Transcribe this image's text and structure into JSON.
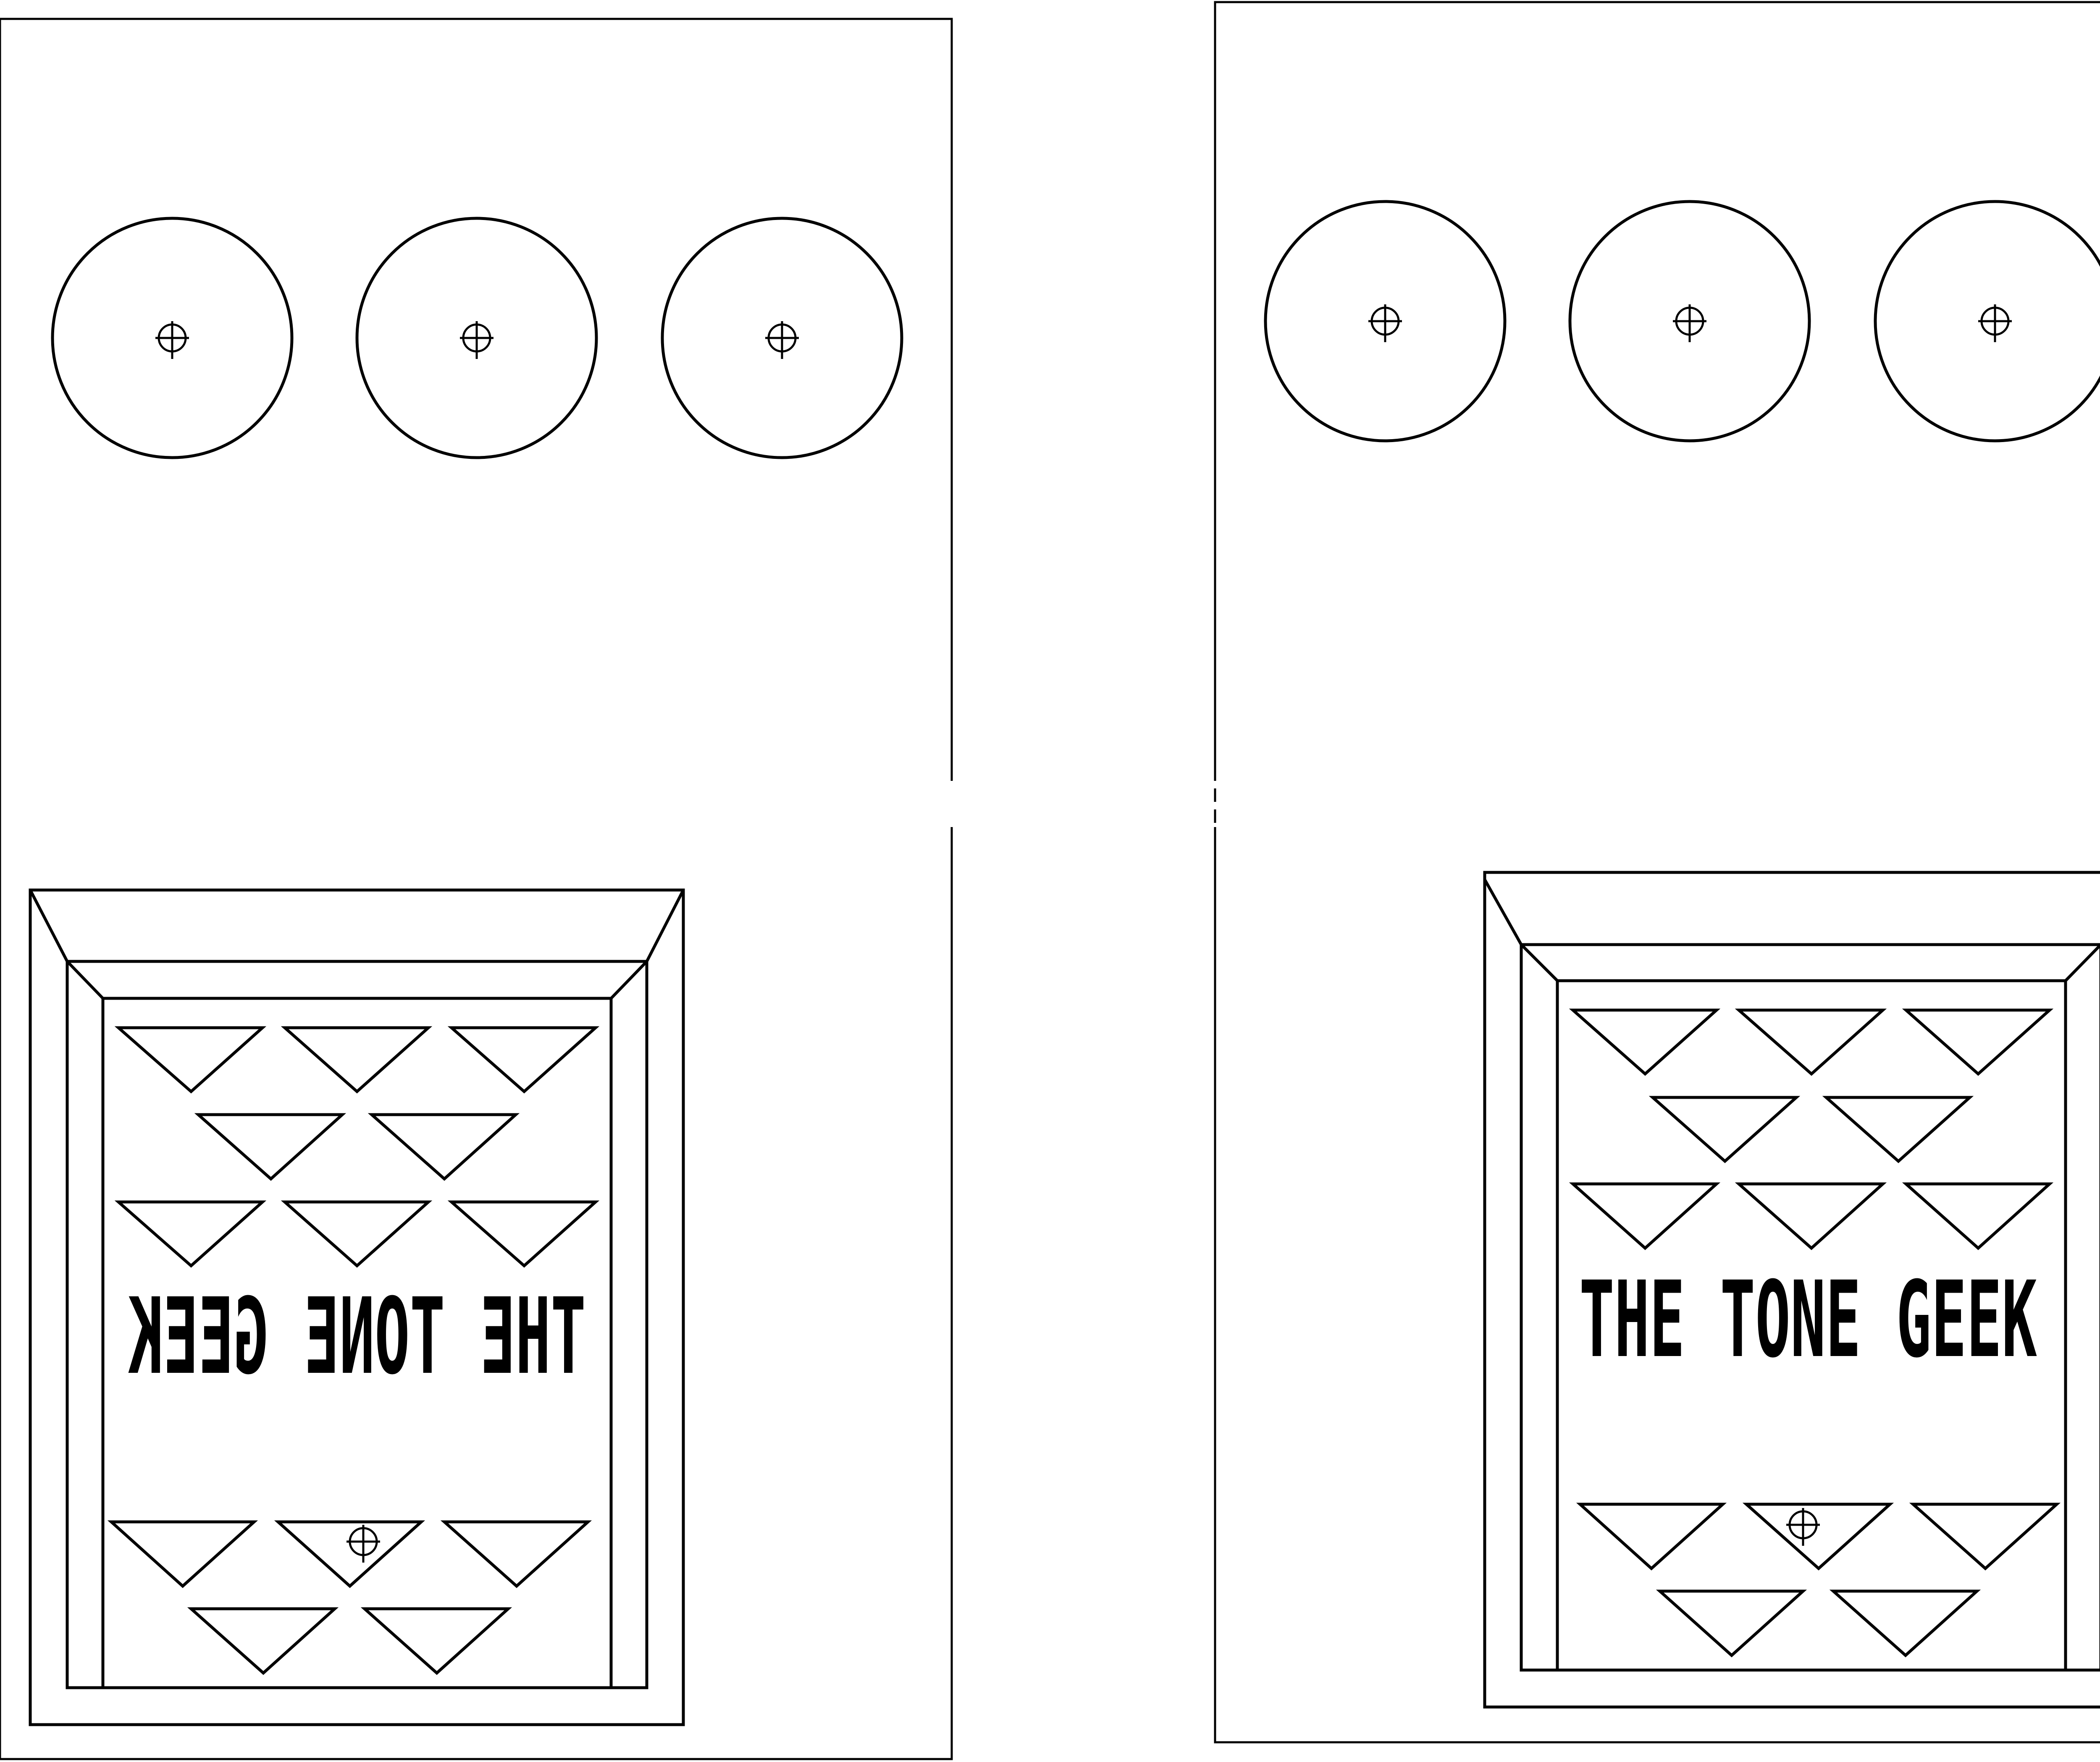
{
  "brand": {
    "logo_text_front": "THE TONE GEEK",
    "logo_text_mirrored": "THE TONE GEEK"
  },
  "panels": [
    {
      "id": "left",
      "orientation": "mirrored",
      "knob_count": 3,
      "triangle_rows": [
        3,
        2,
        3
      ],
      "bottom_triangle_rows": [
        3,
        2
      ]
    },
    {
      "id": "right",
      "orientation": "normal",
      "knob_count": 3,
      "triangle_rows": [
        3,
        2,
        3
      ],
      "bottom_triangle_rows": [
        3,
        2
      ]
    }
  ],
  "colors": {
    "line": "#000000",
    "background": "#ffffff"
  }
}
